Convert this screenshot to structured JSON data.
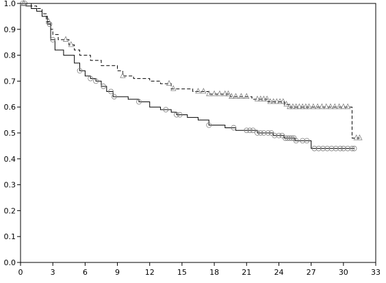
{
  "chart_data": {
    "type": "line",
    "title": "",
    "xlabel": "",
    "ylabel": "",
    "xlim": [
      0,
      33
    ],
    "ylim": [
      0.0,
      1.0
    ],
    "x_ticks": [
      "0",
      "3",
      "6",
      "9",
      "12",
      "15",
      "18",
      "21",
      "24",
      "27",
      "30",
      "33"
    ],
    "y_ticks": [
      "0.0",
      "0.1",
      "0.2",
      "0.3",
      "0.4",
      "0.5",
      "0.6",
      "0.7",
      "0.8",
      "0.9",
      "1.0"
    ],
    "grid": false,
    "legend": "none",
    "series": [
      {
        "line_style": "solid",
        "censor_marker": "circle",
        "color": "#000000",
        "marker_color": "#808080",
        "steps": [
          [
            0,
            1.0
          ],
          [
            0.5,
            0.99
          ],
          [
            1.0,
            0.98
          ],
          [
            1.5,
            0.97
          ],
          [
            2.0,
            0.95
          ],
          [
            2.5,
            0.92
          ],
          [
            2.8,
            0.86
          ],
          [
            3.2,
            0.82
          ],
          [
            4.0,
            0.8
          ],
          [
            5.0,
            0.77
          ],
          [
            5.5,
            0.74
          ],
          [
            6.0,
            0.72
          ],
          [
            6.5,
            0.71
          ],
          [
            7.0,
            0.7
          ],
          [
            7.5,
            0.68
          ],
          [
            8.0,
            0.66
          ],
          [
            8.6,
            0.64
          ],
          [
            10.0,
            0.63
          ],
          [
            11.0,
            0.62
          ],
          [
            12.0,
            0.6
          ],
          [
            13.0,
            0.59
          ],
          [
            14.0,
            0.58
          ],
          [
            14.5,
            0.57
          ],
          [
            15.5,
            0.56
          ],
          [
            16.5,
            0.55
          ],
          [
            17.5,
            0.53
          ],
          [
            19.0,
            0.52
          ],
          [
            20.0,
            0.51
          ],
          [
            22.0,
            0.5
          ],
          [
            23.5,
            0.49
          ],
          [
            24.5,
            0.48
          ],
          [
            25.5,
            0.47
          ],
          [
            27.0,
            0.44
          ],
          [
            31.0,
            0.44
          ]
        ],
        "censored_times": [
          0.2,
          0.4,
          2.7,
          3.0,
          5.5,
          6.5,
          7.0,
          7.7,
          8.4,
          8.7,
          11.0,
          13.5,
          14.5,
          14.8,
          17.5,
          19.8,
          21.0,
          21.3,
          21.6,
          22.0,
          22.3,
          22.6,
          23.0,
          23.3,
          23.6,
          24.0,
          24.3,
          24.6,
          24.8,
          25.0,
          25.2,
          25.4,
          25.6,
          26.2,
          26.6,
          27.3,
          27.7,
          28.1,
          28.5,
          28.9,
          29.3,
          29.7,
          30.0,
          30.4,
          30.8,
          31.0
        ]
      },
      {
        "line_style": "dashed",
        "censor_marker": "triangle",
        "color": "#000000",
        "marker_color": "#808080",
        "steps": [
          [
            0,
            1.0
          ],
          [
            1.0,
            0.99
          ],
          [
            1.5,
            0.98
          ],
          [
            2.0,
            0.96
          ],
          [
            2.4,
            0.93
          ],
          [
            2.8,
            0.9
          ],
          [
            3.0,
            0.88
          ],
          [
            3.5,
            0.86
          ],
          [
            4.5,
            0.84
          ],
          [
            5.0,
            0.82
          ],
          [
            5.5,
            0.8
          ],
          [
            6.5,
            0.78
          ],
          [
            7.5,
            0.76
          ],
          [
            9.0,
            0.74
          ],
          [
            9.5,
            0.72
          ],
          [
            10.5,
            0.71
          ],
          [
            12.0,
            0.7
          ],
          [
            13.0,
            0.69
          ],
          [
            14.0,
            0.67
          ],
          [
            16.0,
            0.66
          ],
          [
            17.5,
            0.65
          ],
          [
            19.5,
            0.64
          ],
          [
            21.5,
            0.63
          ],
          [
            23.0,
            0.62
          ],
          [
            24.5,
            0.61
          ],
          [
            25.0,
            0.6
          ],
          [
            30.8,
            0.48
          ],
          [
            31.5,
            0.48
          ]
        ],
        "censored_times": [
          0.3,
          2.6,
          4.2,
          4.7,
          9.5,
          13.8,
          14.2,
          16.5,
          17.0,
          17.5,
          18.0,
          18.5,
          19.0,
          19.3,
          19.6,
          20.0,
          20.5,
          21.0,
          22.0,
          22.3,
          22.6,
          22.9,
          23.2,
          23.5,
          23.8,
          24.1,
          24.4,
          24.7,
          25.0,
          25.3,
          25.6,
          25.9,
          26.2,
          26.5,
          26.8,
          27.2,
          27.6,
          28.0,
          28.4,
          28.8,
          29.2,
          29.6,
          30.0,
          30.4,
          31.2,
          31.5
        ]
      }
    ]
  }
}
